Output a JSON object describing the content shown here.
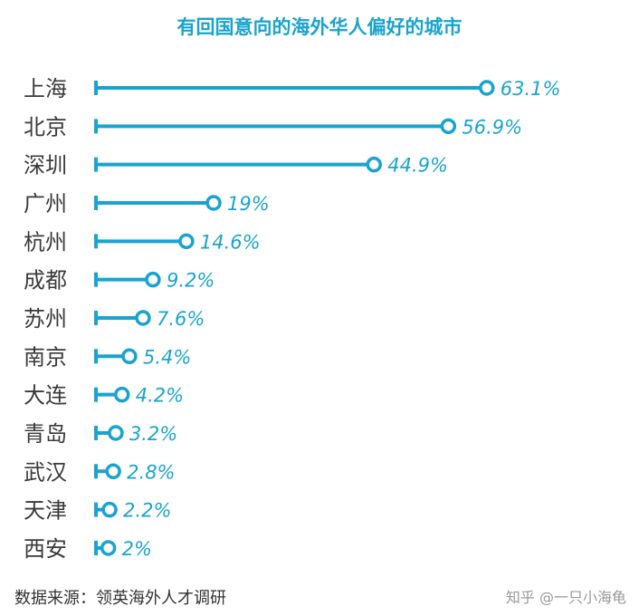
{
  "chart_data": {
    "type": "bar",
    "title": "有回国意向的海外华人偏好的城市",
    "xlabel": "",
    "ylabel": "",
    "categories": [
      "上海",
      "北京",
      "深圳",
      "广州",
      "杭州",
      "成都",
      "苏州",
      "南京",
      "大连",
      "青岛",
      "武汉",
      "天津",
      "西安"
    ],
    "values": [
      63.1,
      56.9,
      44.9,
      19,
      14.6,
      9.2,
      7.6,
      5.4,
      4.2,
      3.2,
      2.8,
      2.2,
      2
    ],
    "value_labels": [
      "63.1%",
      "56.9%",
      "44.9%",
      "19%",
      "14.6%",
      "9.2%",
      "7.6%",
      "5.4%",
      "4.2%",
      "3.2%",
      "2.8%",
      "2.2%",
      "2%"
    ],
    "xlim": [
      0,
      70
    ],
    "grid": false,
    "color": "#1aa3cf"
  },
  "footer": {
    "source": "数据来源：领英海外人才调研",
    "watermark": "知乎 @一只小海龟"
  }
}
